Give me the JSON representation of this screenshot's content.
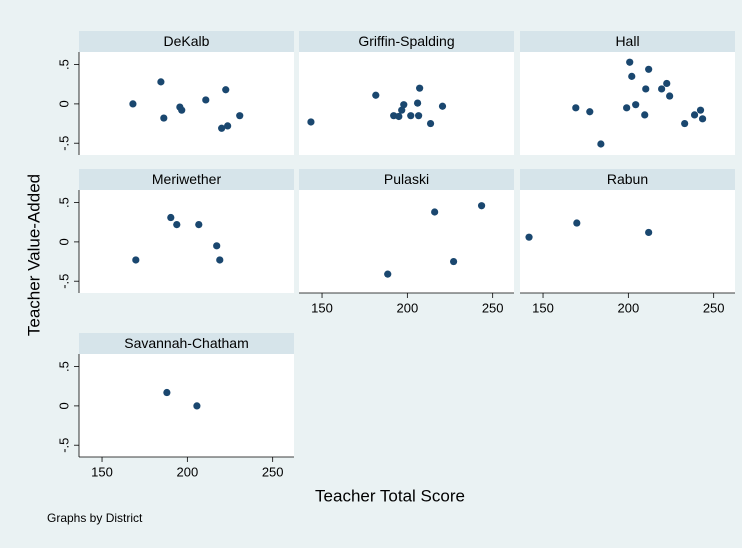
{
  "y_label": "Teacher Value-Added",
  "x_label": "Teacher Total Score",
  "note": "Graphs by District",
  "chart_data": [
    {
      "type": "scatter",
      "title": "DeKalb",
      "color": "#1a476f",
      "x": [
        168.1,
        184.5,
        186.2,
        195.6,
        196.7,
        210.8,
        222.5,
        220.1,
        223.6,
        230.7
      ],
      "values": [
        0,
        0.28,
        -0.18,
        -0.04,
        -0.08,
        0.05,
        0.18,
        -0.31,
        -0.28,
        -0.15
      ],
      "xlim": [
        136.5,
        262.5
      ],
      "ylim": [
        -0.65,
        0.66
      ],
      "yticks": [
        {
          "value": -0.5,
          "label": "-.5"
        },
        0,
        {
          "value": 0.5,
          "label": ".5"
        }
      ]
    },
    {
      "type": "scatter",
      "title": "Griffin-Spalding",
      "color": "#1a476f",
      "x": [
        143.5,
        181.5,
        192,
        195,
        196.7,
        197.9,
        202,
        206,
        207.2,
        206.6,
        213.6,
        220.6
      ],
      "values": [
        -0.23,
        0.11,
        -0.15,
        -0.16,
        -0.08,
        -0.01,
        -0.15,
        0.01,
        0.2,
        -0.15,
        -0.25,
        -0.03
      ],
      "xlim": [
        136.5,
        262.5
      ],
      "ylim": [
        -0.65,
        0.66
      ]
    },
    {
      "type": "scatter",
      "title": "Hall",
      "color": "#1a476f",
      "x": [
        169.2,
        177.4,
        183.9,
        199,
        200.8,
        202,
        204.3,
        209.6,
        210.2,
        211.9,
        219.5,
        222.5,
        224.2,
        233,
        238.8,
        242.3,
        243.5
      ],
      "values": [
        -0.05,
        -0.1,
        -0.51,
        -0.05,
        0.53,
        0.35,
        -0.01,
        -0.14,
        0.19,
        0.44,
        0.19,
        0.26,
        0.1,
        -0.25,
        -0.14,
        -0.08,
        -0.19
      ],
      "xlim": [
        136.5,
        262.5
      ],
      "ylim": [
        -0.65,
        0.66
      ]
    },
    {
      "type": "scatter",
      "title": "Meriwether",
      "color": "#1a476f",
      "x": [
        169.8,
        190.3,
        193.8,
        206.7,
        217.2,
        219
      ],
      "values": [
        -0.23,
        0.31,
        0.22,
        0.22,
        -0.05,
        -0.23
      ],
      "xlim": [
        136.5,
        262.5
      ],
      "ylim": [
        -0.65,
        0.66
      ],
      "yticks": [
        {
          "value": -0.5,
          "label": "-.5"
        },
        0,
        {
          "value": 0.5,
          "label": ".5"
        }
      ]
    },
    {
      "type": "scatter",
      "title": "Pulaski",
      "color": "#1a476f",
      "x": [
        188.5,
        216,
        227.1,
        243.5
      ],
      "values": [
        -0.41,
        0.38,
        -0.25,
        0.46
      ],
      "xlim": [
        136.5,
        262.5
      ],
      "ylim": [
        -0.65,
        0.66
      ],
      "xticks": [
        150,
        200,
        250
      ]
    },
    {
      "type": "scatter",
      "title": "Rabun",
      "color": "#1a476f",
      "x": [
        141.8,
        169.8,
        211.9
      ],
      "values": [
        0.06,
        0.24,
        0.12
      ],
      "xlim": [
        136.5,
        262.5
      ],
      "ylim": [
        -0.65,
        0.66
      ],
      "xticks": [
        150,
        200,
        250
      ]
    },
    {
      "type": "scatter",
      "title": "Savannah-Chatham",
      "color": "#1a476f",
      "x": [
        188,
        205.6
      ],
      "values": [
        0.17,
        0
      ],
      "xlim": [
        136.5,
        262.5
      ],
      "ylim": [
        -0.65,
        0.66
      ],
      "xticks": [
        150,
        200,
        250
      ],
      "yticks": [
        {
          "value": -0.5,
          "label": "-.5"
        },
        0,
        {
          "value": 0.5,
          "label": ".5"
        }
      ]
    }
  ]
}
